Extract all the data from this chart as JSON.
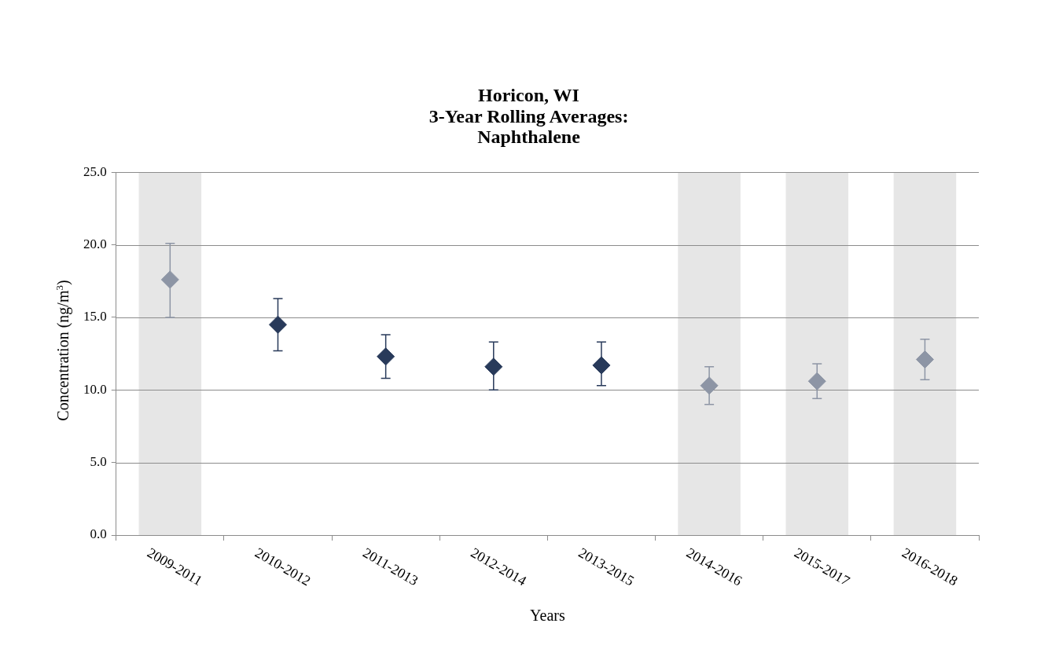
{
  "chart_data": {
    "type": "scatter",
    "title": "Horicon, WI\n3-Year Rolling Averages:\nNaphthalene",
    "xlabel": "Years",
    "ylabel": "Concentration (ng/m$^{3}$)",
    "categories": [
      "2009-2011",
      "2010-2012",
      "2011-2013",
      "2012-2014",
      "2013-2015",
      "2014-2016",
      "2015-2017",
      "2016-2018"
    ],
    "values": [
      17.6,
      14.5,
      12.3,
      11.6,
      11.7,
      10.3,
      10.6,
      12.1
    ],
    "colors": [
      "#8d95a5",
      "#283a5a",
      "#283a5a",
      "#283a5a",
      "#283a5a",
      "#8d95a5",
      "#8d95a5",
      "#8d95a5"
    ],
    "errors": [
      [
        15.0,
        20.1
      ],
      [
        12.7,
        16.3
      ],
      [
        10.8,
        13.8
      ],
      [
        10.0,
        13.3
      ],
      [
        10.3,
        13.3
      ],
      [
        9.0,
        11.6
      ],
      [
        9.4,
        11.8
      ],
      [
        10.7,
        13.5
      ]
    ],
    "bands": [
      {
        "axis": "x",
        "from": "2009-2011",
        "to": "2009-2011",
        "color": "#e6e6e6"
      },
      {
        "axis": "x",
        "from": "2014-2016",
        "to": "2014-2016",
        "color": "#e6e6e6"
      },
      {
        "axis": "x",
        "from": "2015-2017",
        "to": "2015-2017",
        "color": "#e6e6e6"
      },
      {
        "axis": "x",
        "from": "2016-2018",
        "to": "2016-2018",
        "color": "#e6e6e6"
      }
    ],
    "ylim": [
      0,
      25
    ],
    "yticks": [
      {
        "value": 0,
        "label": "0.0"
      },
      {
        "value": 5,
        "label": "5.0"
      },
      {
        "value": 10,
        "label": "10.0"
      },
      {
        "value": 15,
        "label": "15.0"
      },
      {
        "value": 20,
        "label": "20.0"
      },
      {
        "value": 25,
        "label": "25.0"
      }
    ],
    "grid": "y",
    "marker": "diamond",
    "legend": false
  }
}
